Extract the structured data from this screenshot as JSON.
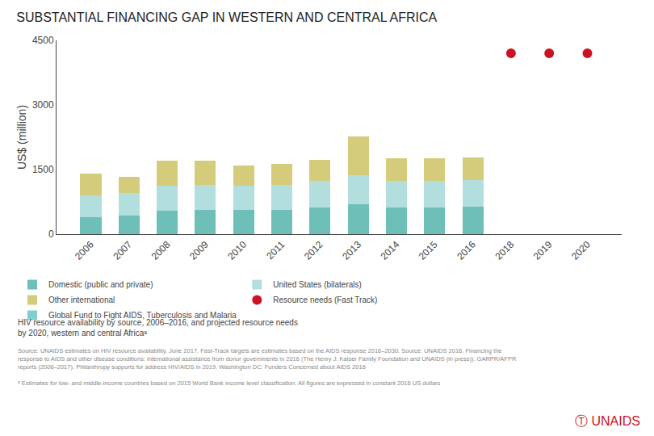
{
  "chart_data": {
    "type": "bar",
    "stacked": true,
    "title": "SUBSTANTIAL FINANCING GAP IN WESTERN AND CENTRAL AFRICA",
    "ylabel": "US$ (million)",
    "subtitle": [
      "HIV resource availability by source, 2006–2016, and projected resource needs",
      "by 2020, western and central Africaᵃ"
    ],
    "categories": [
      "2006",
      "2007",
      "2008",
      "2009",
      "2010",
      "2011",
      "2012",
      "2013",
      "2014",
      "2015",
      "2016",
      "2018",
      "2019",
      "2020"
    ],
    "series": [
      {
        "name": "Domestic (public and private)",
        "color": "#6dbfb8",
        "values": [
          400,
          430,
          550,
          570,
          560,
          570,
          620,
          700,
          620,
          620,
          630,
          null,
          null,
          null
        ]
      },
      {
        "name": "United States (bilaterals)",
        "color": "#b2dede",
        "values": [
          500,
          530,
          580,
          580,
          560,
          580,
          620,
          670,
          620,
          620,
          620,
          null,
          null,
          null
        ]
      },
      {
        "name": "Other international",
        "color": "#d4cc7a",
        "values": [
          500,
          380,
          570,
          560,
          480,
          480,
          480,
          900,
          530,
          530,
          530,
          null,
          null,
          null
        ]
      },
      {
        "name": "Resource needs (Fast Track)",
        "type": "scatter",
        "marker": "circle",
        "color": "#cc1122",
        "values": [
          null,
          null,
          null,
          null,
          null,
          null,
          null,
          null,
          null,
          null,
          null,
          4200,
          4200,
          4200
        ]
      },
      {
        "name": "Global Fund to Fight AIDS, Tuberculosis and Malaria",
        "color": "#80cfcf",
        "values": [
          null,
          null,
          null,
          null,
          null,
          null,
          null,
          null,
          null,
          null,
          null,
          null,
          null,
          null
        ]
      }
    ],
    "ylim": [
      0,
      4500
    ],
    "yticks": [
      0,
      1500,
      3000,
      4500
    ],
    "grid": false,
    "legend": "bottom",
    "annotations": [
      {
        "text": "Source: UNAIDS estimates on HIV resource availability, June 2017. Fast-Track targets are estimates based on the AIDS response 2016–2030. Source: UNAIDS 2016. Financing the\nresponse to AIDS and other disease conditions: international assistance from donor governments in 2016 (The Henry J. Kaiser Family Foundation and UNAIDS (in press)). GARPR/AFPR\nreports (2006–2017). Philanthropy supports for address HIV/AIDS in 2019. Washington DC: Funders Concerned about AIDS 2016"
      },
      {
        "text": "ᵃ Estimates for low- and middle-income countries based on 2015 World Bank income level classification. All figures are expressed in constant 2016 US dollars"
      },
      {
        "text": "Ⓣ UNAIDS",
        "color": "#cc1122"
      }
    ]
  }
}
